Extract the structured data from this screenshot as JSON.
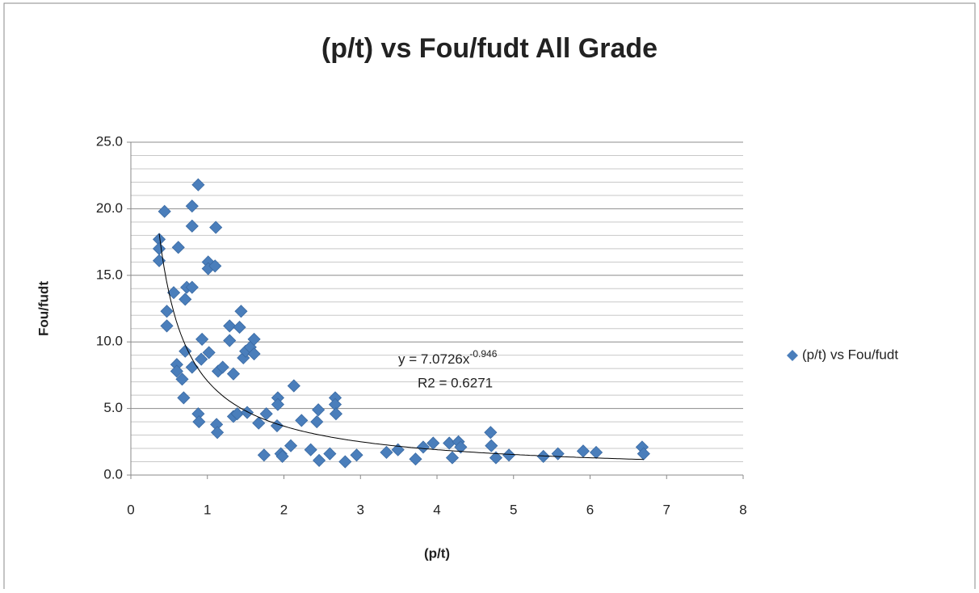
{
  "chart_data": {
    "type": "scatter",
    "title": "(p/t) vs Fou/fudt  All Grade",
    "x_label": "(p/t)",
    "y_label": "Fou/fudt",
    "xlim": [
      0,
      8
    ],
    "xticks": [
      0,
      1,
      2,
      3,
      4,
      5,
      6,
      7,
      8
    ],
    "ylim": [
      0,
      25
    ],
    "yticks": [
      {
        "value": 0,
        "label": "0.0"
      },
      {
        "value": 5,
        "label": "5.0"
      },
      {
        "value": 10,
        "label": "10.0"
      },
      {
        "value": 15,
        "label": "15.0"
      },
      {
        "value": 20,
        "label": "20.0"
      },
      {
        "value": 25,
        "label": "25.0"
      }
    ],
    "minor_yticks": [
      1,
      2,
      3,
      4,
      6,
      7,
      8,
      9,
      11,
      12,
      13,
      14,
      16,
      17,
      18,
      19,
      21,
      22,
      23,
      24
    ],
    "grid": true,
    "legend": "right",
    "series": [
      {
        "name": "(p/t) vs Fou/fudt",
        "color": "#4a7ebb",
        "x": [
          0.37,
          0.37,
          0.37,
          0.44,
          0.62,
          0.56,
          0.47,
          0.47,
          0.6,
          0.6,
          0.67,
          0.69,
          0.71,
          0.73,
          0.8,
          0.8,
          0.8,
          0.88,
          0.71,
          0.8,
          0.88,
          0.89,
          0.93,
          0.92,
          1.02,
          1.01,
          1.01,
          1.1,
          1.11,
          1.12,
          1.13,
          1.14,
          1.2,
          1.29,
          1.29,
          1.34,
          1.34,
          1.39,
          1.44,
          1.42,
          1.47,
          1.5,
          1.56,
          1.61,
          1.61,
          1.52,
          1.67,
          1.74,
          1.77,
          1.91,
          1.92,
          1.92,
          1.96,
          1.98,
          2.09,
          2.13,
          2.23,
          2.35,
          2.43,
          2.45,
          2.46,
          2.6,
          2.67,
          2.67,
          2.68,
          2.8,
          2.95,
          3.34,
          3.49,
          3.72,
          3.82,
          3.95,
          4.16,
          4.2,
          4.28,
          4.31,
          4.7,
          4.71,
          4.77,
          4.94,
          5.39,
          5.58,
          5.91,
          6.08,
          6.68,
          6.7
        ],
        "values": [
          17.7,
          17.0,
          16.1,
          19.8,
          17.1,
          13.7,
          12.3,
          11.2,
          8.3,
          7.8,
          7.2,
          5.8,
          13.2,
          14.1,
          14.1,
          18.7,
          20.2,
          21.8,
          9.3,
          8.1,
          4.6,
          4.0,
          10.2,
          8.7,
          9.2,
          16.0,
          15.5,
          15.7,
          18.6,
          3.8,
          3.2,
          7.8,
          8.1,
          11.2,
          10.1,
          4.4,
          7.6,
          4.6,
          12.3,
          11.1,
          8.8,
          9.3,
          9.6,
          10.2,
          9.1,
          4.7,
          3.9,
          1.5,
          4.6,
          3.7,
          5.8,
          5.3,
          1.6,
          1.4,
          2.2,
          6.7,
          4.1,
          1.9,
          4.0,
          4.9,
          1.1,
          1.6,
          5.8,
          5.3,
          4.6,
          1.0,
          1.5,
          1.7,
          1.9,
          1.2,
          2.1,
          2.4,
          2.4,
          1.3,
          2.5,
          2.1,
          3.2,
          2.2,
          1.3,
          1.5,
          1.4,
          1.6,
          1.8,
          1.7,
          2.1,
          1.6
        ]
      }
    ],
    "trendline": {
      "a": 7.0726,
      "b": -0.946,
      "x_range": [
        0.37,
        6.7
      ],
      "equation": "y = 7.0726x",
      "equation_exponent": "-0.946",
      "r_squared": "R2 = 0.6271"
    }
  }
}
